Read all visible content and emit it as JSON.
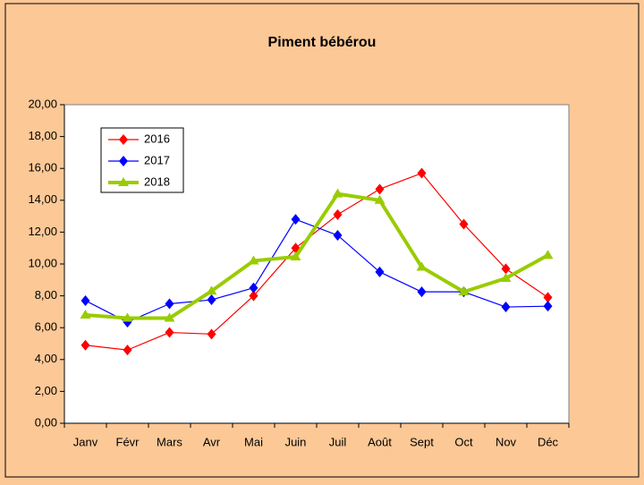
{
  "chart_data": {
    "type": "line",
    "title": "Piment bébérou",
    "categories": [
      "Janv",
      "Févr",
      "Mars",
      "Avr",
      "Mai",
      "Juin",
      "Juil",
      "Août",
      "Sept",
      "Oct",
      "Nov",
      "Déc"
    ],
    "series": [
      {
        "name": "2016",
        "color": "#ff0000",
        "values": [
          4.9,
          4.6,
          5.7,
          5.6,
          8.0,
          11.0,
          13.1,
          14.7,
          15.7,
          12.5,
          9.7,
          7.9
        ]
      },
      {
        "name": "2017",
        "color": "#0000ff",
        "values": [
          7.7,
          6.35,
          7.5,
          7.75,
          8.5,
          12.8,
          11.8,
          9.5,
          8.25,
          8.25,
          7.3,
          7.35
        ]
      },
      {
        "name": "2018",
        "color": "#99cc00",
        "values": [
          6.8,
          6.6,
          6.6,
          8.3,
          10.2,
          10.45,
          14.4,
          14.0,
          9.8,
          8.25,
          9.1,
          10.55
        ]
      }
    ],
    "ylim": [
      0,
      20
    ],
    "yticks": [
      {
        "value": 0,
        "label": "0,00"
      },
      {
        "value": 2,
        "label": "2,00"
      },
      {
        "value": 4,
        "label": "4,00"
      },
      {
        "value": 6,
        "label": "6,00"
      },
      {
        "value": 8,
        "label": "8,00"
      },
      {
        "value": 10,
        "label": "10,00"
      },
      {
        "value": 12,
        "label": "12,00"
      },
      {
        "value": 14,
        "label": "14,00"
      },
      {
        "value": 16,
        "label": "16,00"
      },
      {
        "value": 18,
        "label": "18,00"
      },
      {
        "value": 20,
        "label": "20,00"
      }
    ],
    "grid": false,
    "legend_position": "upper left"
  }
}
